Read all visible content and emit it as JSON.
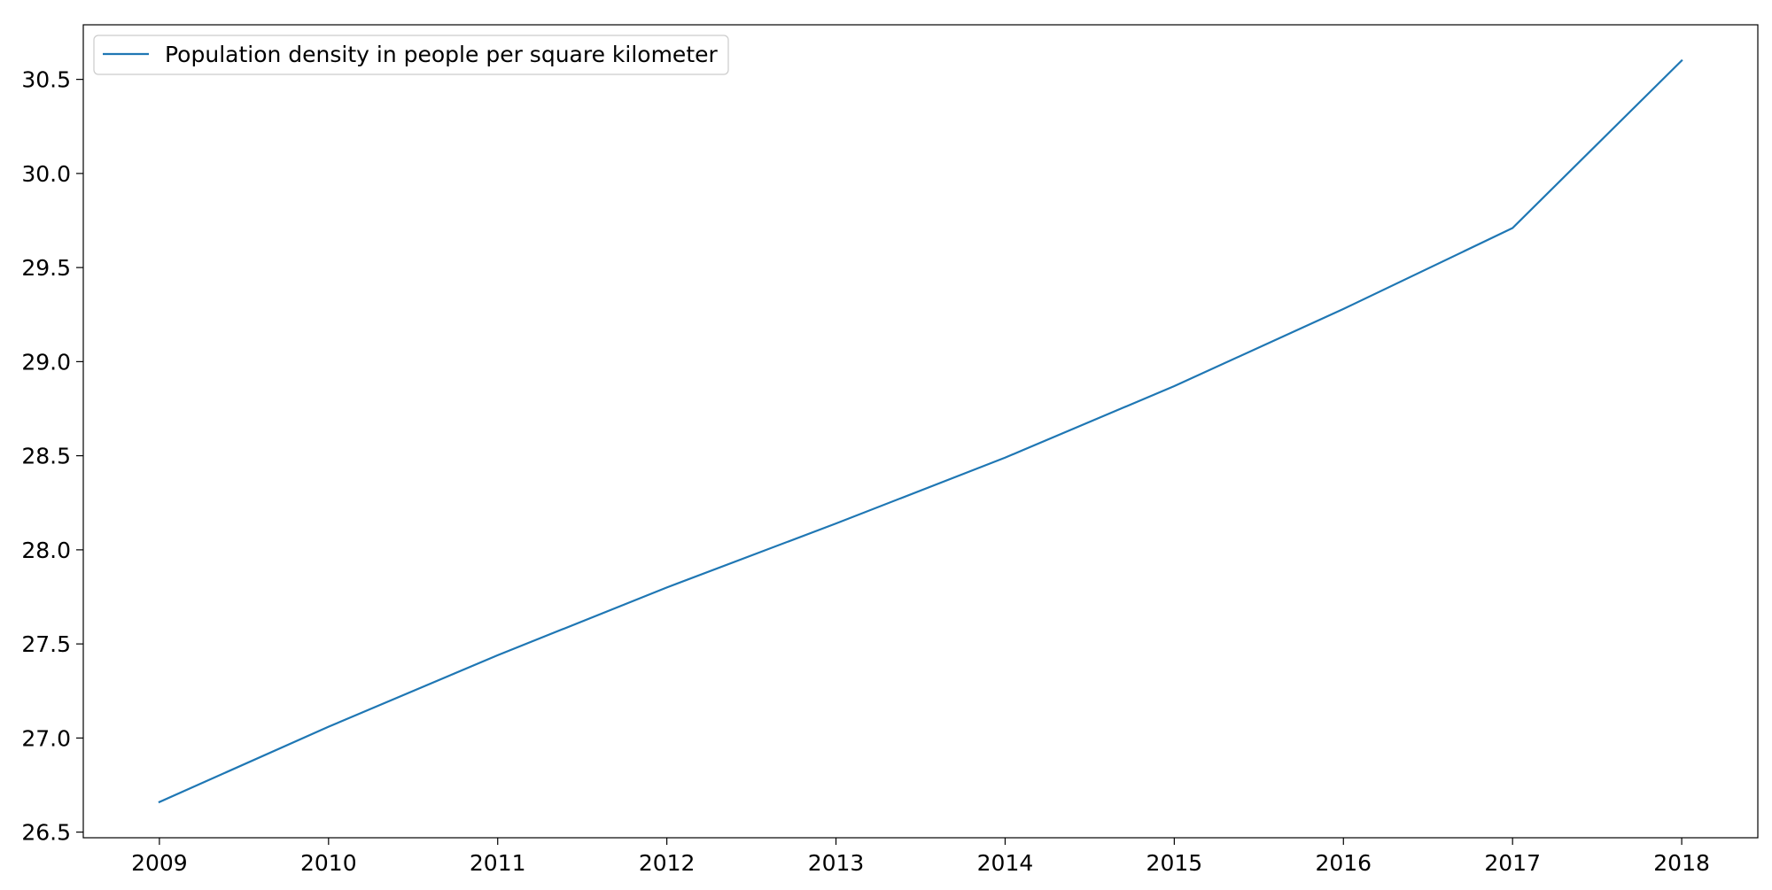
{
  "chart_data": {
    "type": "line",
    "title": "",
    "xlabel": "",
    "ylabel": "",
    "x": [
      2009,
      2010,
      2011,
      2012,
      2013,
      2014,
      2015,
      2016,
      2017,
      2018
    ],
    "series": [
      {
        "name": "Population density in people per square kilometer",
        "values": [
          26.66,
          27.06,
          27.44,
          27.8,
          28.14,
          28.49,
          28.87,
          29.28,
          29.71,
          30.6
        ],
        "color": "#1f77b4"
      }
    ],
    "xlim": [
      2008.55,
      2018.45
    ],
    "ylim": [
      26.47,
      30.79
    ],
    "x_ticks": [
      "2009",
      "2010",
      "2011",
      "2012",
      "2013",
      "2014",
      "2015",
      "2016",
      "2017",
      "2018"
    ],
    "y_ticks": [
      "26.5",
      "27.0",
      "27.5",
      "28.0",
      "28.5",
      "29.0",
      "29.5",
      "30.0",
      "30.5"
    ],
    "grid": false,
    "legend": {
      "placement": "top-left",
      "entries": [
        "Population density in people per square kilometer"
      ]
    }
  }
}
